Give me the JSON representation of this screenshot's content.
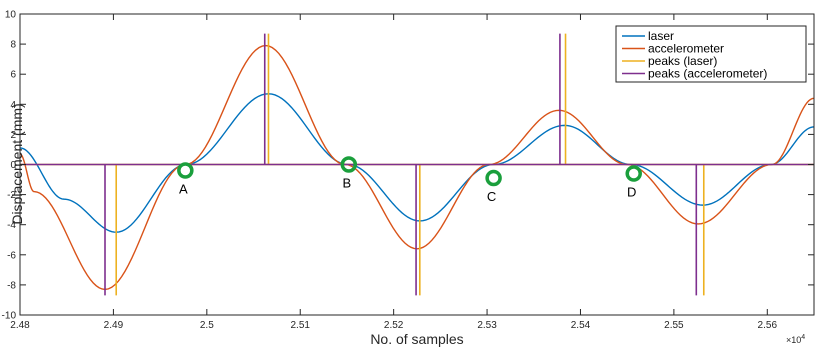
{
  "chart_data": {
    "type": "line",
    "title": "",
    "xlabel": "No. of samples",
    "ylabel": "Displacement (mm)",
    "x_multiplier_label": "×10",
    "x_multiplier_exp": "4",
    "xlim": [
      2.48,
      2.565
    ],
    "ylim": [
      -10,
      10
    ],
    "xticks": [
      "2.48",
      "2.49",
      "2.5",
      "2.51",
      "2.52",
      "2.53",
      "2.54",
      "2.55",
      "2.56"
    ],
    "yticks": [
      "-10",
      "-8",
      "-6",
      "-4",
      "-2",
      "0",
      "2",
      "4",
      "6",
      "8",
      "10"
    ],
    "grid": false,
    "legend_position": "top-right",
    "series": [
      {
        "name": "laser",
        "color": "#0072bd",
        "x": [
          2.48,
          2.4847,
          2.4903,
          2.4978,
          2.5066,
          2.5151,
          2.5228,
          2.5307,
          2.5383,
          2.5454,
          2.5531,
          2.5604,
          2.565
        ],
        "y": [
          1.1,
          -2.3,
          -4.5,
          0,
          4.7,
          0,
          -3.75,
          0,
          2.6,
          0,
          -2.7,
          0,
          2.5
        ]
      },
      {
        "name": "accelerometer",
        "color": "#d95319",
        "x": [
          2.48,
          2.4815,
          2.4891,
          2.4977,
          2.5063,
          2.5148,
          2.5225,
          2.5302,
          2.5377,
          2.545,
          2.5526,
          2.5605,
          2.565
        ],
        "y": [
          0.7,
          -1.8,
          -8.3,
          0,
          7.9,
          0,
          -5.6,
          0,
          3.6,
          0,
          -3.95,
          0,
          4.4
        ]
      },
      {
        "name": "peaks (laser)",
        "color": "#edb120",
        "impulses": [
          {
            "x": 2.4903,
            "y": -8.7
          },
          {
            "x": 2.5066,
            "y": 8.7
          },
          {
            "x": 2.5228,
            "y": -8.7
          },
          {
            "x": 2.5384,
            "y": 8.7
          },
          {
            "x": 2.5532,
            "y": -8.7
          }
        ]
      },
      {
        "name": "peaks (accelerometer)",
        "color": "#7e2f8e",
        "impulses": [
          {
            "x": 2.4891,
            "y": -8.7
          },
          {
            "x": 2.5062,
            "y": 8.7
          },
          {
            "x": 2.5224,
            "y": -8.7
          },
          {
            "x": 2.5378,
            "y": 8.7
          },
          {
            "x": 2.5524,
            "y": -8.7
          }
        ]
      }
    ],
    "annotations": [
      {
        "label": "A",
        "x": 2.4977,
        "y": -0.4,
        "color": "#1a9f3c"
      },
      {
        "label": "B",
        "x": 2.5152,
        "y": 0,
        "color": "#1a9f3c"
      },
      {
        "label": "C",
        "x": 2.5307,
        "y": -0.9,
        "color": "#1a9f3c"
      },
      {
        "label": "D",
        "x": 2.5457,
        "y": -0.6,
        "color": "#1a9f3c"
      }
    ]
  }
}
